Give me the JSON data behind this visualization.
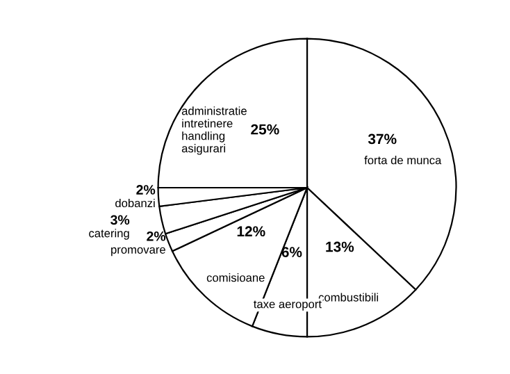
{
  "chart_data": {
    "type": "pie",
    "categories": [
      "forta de munca",
      "combustibili",
      "taxe aeroport",
      "comisioane",
      "promovare",
      "catering",
      "dobanzi",
      "administratie\nintretinere\nhandling\nasigurari"
    ],
    "values": [
      37,
      13,
      6,
      12,
      2,
      3,
      2,
      25
    ],
    "colors": [
      "#ffffff",
      "#ffffff",
      "#ffffff",
      "#ffffff",
      "#ffffff",
      "#ffffff",
      "#ffffff",
      "#ffffff"
    ],
    "value_labels": [
      "37%",
      "13%",
      "6%",
      "12%",
      "2%",
      "3%",
      "2%",
      "25%"
    ]
  }
}
